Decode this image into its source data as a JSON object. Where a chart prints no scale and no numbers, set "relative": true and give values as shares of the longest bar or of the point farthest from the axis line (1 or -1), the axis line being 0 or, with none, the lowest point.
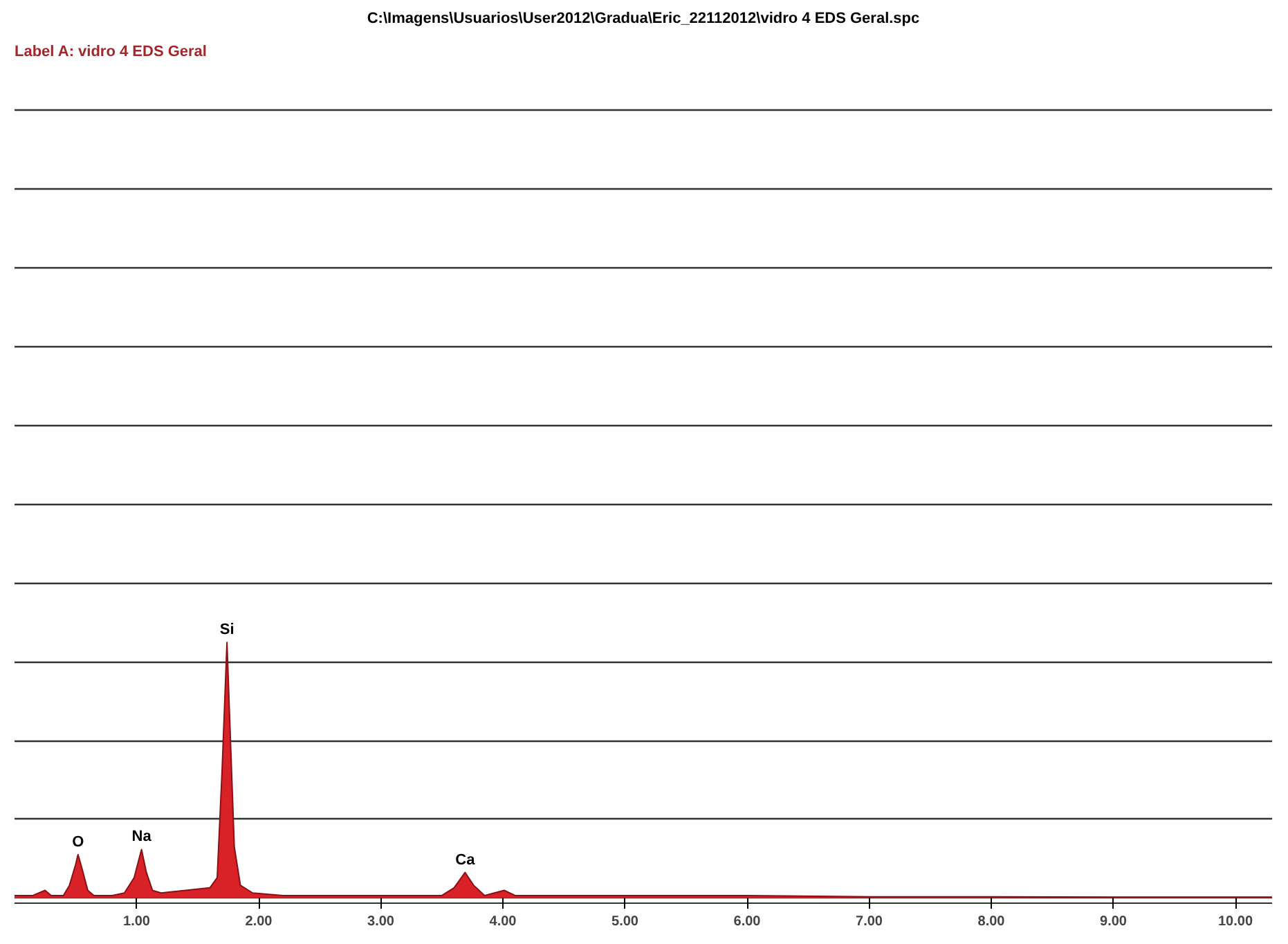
{
  "chart_data": {
    "type": "area",
    "relative": true,
    "title": "C:\\Imagens\\Usuarios\\User2012\\Gradua\\Eric_22112012\\vidro 4 EDS Geral.spc",
    "subtitle": "Label A: vidro 4 EDS Geral",
    "x": [
      0.0,
      0.15,
      0.25,
      0.3,
      0.4,
      0.45,
      0.5,
      0.52,
      0.55,
      0.6,
      0.65,
      0.8,
      0.9,
      0.98,
      1.04,
      1.08,
      1.13,
      1.2,
      1.4,
      1.6,
      1.66,
      1.7,
      1.74,
      1.77,
      1.8,
      1.85,
      1.95,
      2.2,
      3.0,
      3.5,
      3.6,
      3.69,
      3.76,
      3.85,
      4.01,
      4.1,
      5.0,
      6.0,
      7.0,
      8.0,
      9.0,
      10.0,
      10.3
    ],
    "series": [
      {
        "color": "#d92128",
        "values": [
          0.01,
          0.01,
          0.03,
          0.01,
          0.01,
          0.05,
          0.13,
          0.17,
          0.12,
          0.03,
          0.01,
          0.01,
          0.02,
          0.08,
          0.19,
          0.1,
          0.03,
          0.02,
          0.03,
          0.04,
          0.08,
          0.5,
          1.0,
          0.6,
          0.2,
          0.05,
          0.02,
          0.01,
          0.01,
          0.01,
          0.04,
          0.1,
          0.05,
          0.01,
          0.03,
          0.01,
          0.01,
          0.01,
          0.005,
          0.005,
          0.004,
          0.004,
          0.004
        ]
      }
    ],
    "xlim": [
      0,
      10.3
    ],
    "xticks": [
      {
        "value": 1,
        "label": "1.00"
      },
      {
        "value": 2,
        "label": "2.00"
      },
      {
        "value": 3,
        "label": "3.00"
      },
      {
        "value": 4,
        "label": "4.00"
      },
      {
        "value": 5,
        "label": "5.00"
      },
      {
        "value": 6,
        "label": "6.00"
      },
      {
        "value": 7,
        "label": "7.00"
      },
      {
        "value": 8,
        "label": "8.00"
      },
      {
        "value": 9,
        "label": "9.00"
      },
      {
        "value": 10,
        "label": "10.00"
      }
    ],
    "tick_labels": "x",
    "grid": "y",
    "annotations": [
      {
        "text": "O",
        "x": 0.52,
        "y": 0.17
      },
      {
        "text": "Na",
        "x": 1.04,
        "y": 0.19
      },
      {
        "text": "Si",
        "x": 1.74,
        "y": 1.0
      },
      {
        "text": "Ca",
        "x": 3.69,
        "y": 0.1
      }
    ]
  }
}
